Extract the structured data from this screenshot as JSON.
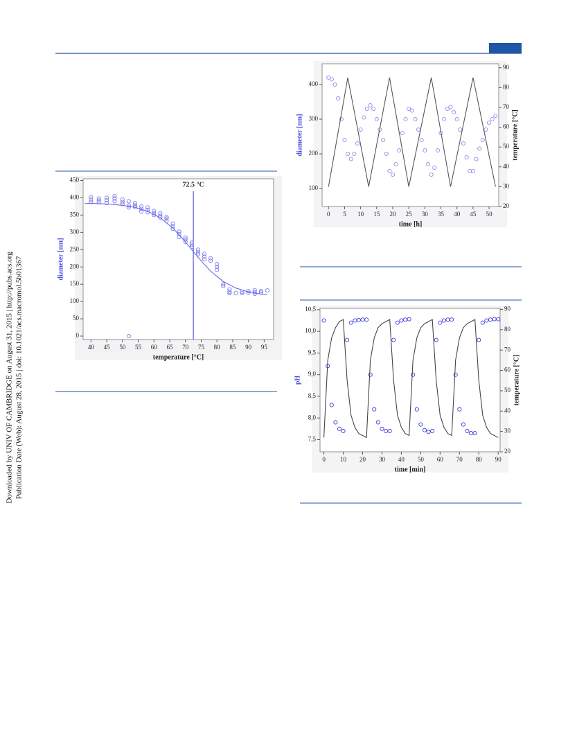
{
  "side_text": [
    "Downloaded by UNIV OF CAMBRIDGE on August 31, 2015 | http://pubs.acs.org",
    "Publication Date (Web): August 28, 2015 | doi: 10.1021/acs.macromol.5b01367"
  ],
  "chart_data": [
    {
      "type": "scatter",
      "x_label": "temperature [°C]",
      "y_label": "diameter [nm]",
      "xlim": [
        37.5,
        98
      ],
      "xticks": [
        40,
        45,
        50,
        55,
        60,
        65,
        70,
        75,
        80,
        85,
        90,
        95
      ],
      "ylim": [
        -10,
        455
      ],
      "yticks": [
        0,
        50,
        100,
        150,
        200,
        250,
        300,
        350,
        400,
        450
      ],
      "annotation": {
        "text": "72.5 °C",
        "x": 72.5
      },
      "series": [
        {
          "mode": "markers",
          "color": "#7b7bef",
          "axis": "y",
          "x": [
            40,
            40,
            40,
            42.5,
            42.5,
            42.5,
            45,
            45,
            45,
            47.5,
            47.5,
            47.5,
            50,
            50,
            50,
            52,
            52,
            52,
            52,
            54,
            54,
            54,
            56,
            56,
            56,
            58,
            58,
            58,
            60,
            60,
            60,
            62,
            62,
            62,
            64,
            64,
            64,
            66,
            66,
            66,
            68,
            68,
            68,
            70,
            70,
            70,
            72,
            72,
            72,
            74,
            74,
            74,
            76,
            76,
            76,
            78,
            78,
            80,
            80,
            80,
            82,
            82,
            84,
            84,
            84,
            86,
            88,
            88,
            90,
            90,
            92,
            92,
            92,
            94,
            94,
            96
          ],
          "values": [
            402,
            395,
            388,
            398,
            392,
            387,
            400,
            393,
            385,
            405,
            398,
            390,
            395,
            388,
            382,
            390,
            378,
            372,
            0,
            385,
            378,
            373,
            375,
            368,
            360,
            372,
            365,
            358,
            362,
            355,
            350,
            355,
            348,
            343,
            345,
            340,
            333,
            325,
            318,
            310,
            302,
            295,
            287,
            285,
            280,
            273,
            270,
            264,
            258,
            250,
            243,
            237,
            238,
            230,
            222,
            225,
            218,
            208,
            200,
            192,
            150,
            145,
            135,
            128,
            124,
            125,
            128,
            124,
            130,
            125,
            133,
            127,
            122,
            130,
            126,
            132
          ]
        },
        {
          "mode": "line",
          "color": "#6a6ae6",
          "axis": "y",
          "x": [
            38,
            42,
            46,
            50,
            54,
            58,
            62,
            66,
            70,
            74,
            78,
            82,
            86,
            90,
            94,
            96
          ],
          "values": [
            384.1,
            383.2,
            381.5,
            378.3,
            372.2,
            361.1,
            342.1,
            312.4,
            272.2,
            227.7,
            187.6,
            157.9,
            138.9,
            127.8,
            121.7,
            119.8
          ]
        }
      ]
    },
    {
      "type": "scatter",
      "x_label": "time [h]",
      "y_label": "diameter [nm]",
      "y2_label": "temperature [°C]",
      "xlim": [
        -2,
        53
      ],
      "xticks": [
        0,
        5,
        10,
        15,
        20,
        25,
        30,
        35,
        40,
        45,
        50
      ],
      "ylim": [
        48,
        460
      ],
      "yticks": [
        100,
        200,
        300,
        400
      ],
      "y2lim": [
        20,
        92
      ],
      "y2ticks": [
        20,
        30,
        40,
        50,
        60,
        70,
        80,
        90
      ],
      "series": [
        {
          "mode": "markers",
          "color": "#8c8cee",
          "axis": "y",
          "x": [
            0,
            1,
            2,
            3,
            4,
            5,
            6,
            7,
            8,
            9,
            10,
            11,
            12,
            13,
            14,
            15,
            16,
            17,
            18,
            19,
            20,
            21,
            22,
            23,
            24,
            25,
            26,
            27,
            28,
            29,
            30,
            31,
            32,
            33,
            34,
            35,
            36,
            37,
            38,
            39,
            40,
            41,
            42,
            43,
            44,
            45,
            46,
            47,
            48,
            49,
            50,
            51,
            52
          ],
          "values": [
            420,
            415,
            400,
            360,
            300,
            240,
            200,
            185,
            200,
            230,
            270,
            305,
            330,
            340,
            330,
            300,
            270,
            240,
            200,
            150,
            140,
            170,
            210,
            260,
            300,
            330,
            325,
            300,
            270,
            240,
            210,
            170,
            140,
            160,
            210,
            260,
            300,
            330,
            335,
            320,
            300,
            270,
            230,
            190,
            150,
            150,
            185,
            215,
            240,
            270,
            290,
            300,
            310
          ]
        },
        {
          "mode": "line",
          "color": "#555555",
          "axis": "y2",
          "x": [
            0,
            6,
            12.5,
            19,
            25,
            32,
            38,
            45,
            52
          ],
          "values": [
            30,
            85,
            30,
            85,
            30,
            85,
            30,
            85,
            30
          ]
        }
      ]
    },
    {
      "type": "scatter",
      "x_label": "time [min]",
      "y_label": "pH",
      "y2_label": "temperature [°C]",
      "xlim": [
        -2,
        91
      ],
      "xticks": [
        0,
        10,
        20,
        30,
        40,
        50,
        60,
        70,
        80,
        90
      ],
      "ylim": [
        7.22,
        10.53
      ],
      "yticks": [
        {
          "value": 7.5,
          "label": "7,5"
        },
        {
          "value": 8,
          "label": "8,0"
        },
        {
          "value": 8.5,
          "label": "8,5"
        },
        {
          "value": 9,
          "label": "9,0"
        },
        {
          "value": 9.5,
          "label": "9,5"
        },
        {
          "value": 10,
          "label": "10,0"
        },
        {
          "value": 10.5,
          "label": "10,5"
        }
      ],
      "y2lim": [
        20,
        90.5
      ],
      "y2ticks": [
        20,
        30,
        40,
        50,
        60,
        70,
        80,
        90
      ],
      "series": [
        {
          "mode": "markers",
          "color": "#3a3ae0",
          "axis": "y",
          "x": [
            0,
            2,
            4,
            6,
            8,
            10,
            12,
            14,
            16,
            18,
            20,
            22,
            24,
            26,
            28,
            30,
            32,
            34,
            36,
            38,
            40,
            42,
            44,
            46,
            48,
            50,
            52,
            54,
            56,
            58,
            60,
            62,
            64,
            66,
            68,
            70,
            72,
            74,
            76,
            78,
            80,
            82,
            84,
            86,
            88,
            90
          ],
          "values": [
            10.25,
            9.2,
            8.3,
            7.9,
            7.75,
            7.7,
            9.8,
            10.2,
            10.25,
            10.26,
            10.27,
            10.27,
            9.0,
            8.2,
            7.9,
            7.75,
            7.7,
            7.7,
            9.8,
            10.2,
            10.25,
            10.27,
            10.28,
            9.0,
            8.2,
            7.85,
            7.72,
            7.68,
            7.7,
            9.8,
            10.2,
            10.25,
            10.27,
            10.27,
            9.0,
            8.2,
            7.85,
            7.7,
            7.65,
            7.65,
            9.8,
            10.2,
            10.25,
            10.27,
            10.28,
            10.28
          ]
        },
        {
          "mode": "line",
          "color": "#444444",
          "axis": "y2",
          "x": [
            0,
            2,
            4,
            6,
            8,
            10,
            12,
            14,
            16,
            18,
            20,
            22,
            24,
            26,
            28,
            30,
            32,
            34,
            36,
            38,
            40,
            42,
            44,
            46,
            48,
            50,
            52,
            54,
            56,
            58,
            60,
            62,
            64,
            66,
            68,
            70,
            72,
            74,
            76,
            78,
            80,
            82,
            84,
            86,
            88,
            90
          ],
          "values": [
            27,
            65,
            76,
            81,
            84,
            85,
            55,
            38,
            32,
            29,
            28,
            27,
            65,
            76,
            81,
            83,
            84,
            85,
            55,
            38,
            32,
            29,
            28,
            65,
            76,
            81,
            83,
            84,
            85,
            55,
            38,
            32,
            29,
            28,
            65,
            76,
            81,
            83,
            84,
            85,
            55,
            38,
            32,
            29,
            28,
            27
          ]
        }
      ]
    }
  ]
}
